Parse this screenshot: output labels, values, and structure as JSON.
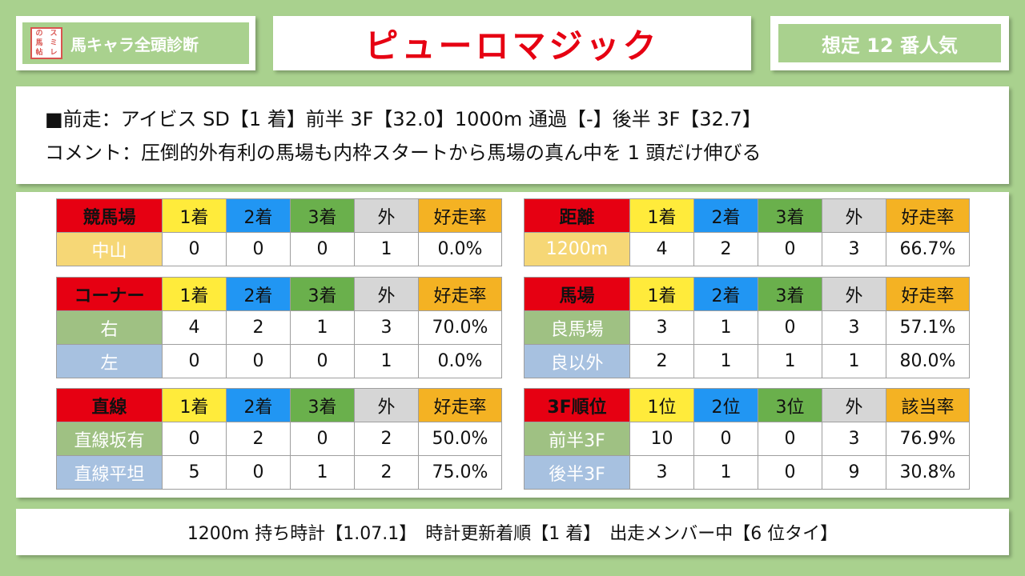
{
  "header": {
    "logo_text": [
      "の",
      "ス",
      "馬",
      "ミ",
      "帖",
      "レ"
    ],
    "series_title": "馬キャラ全頭診断",
    "horse_name": "ピューロマジック",
    "popularity": "想定 12 番人気"
  },
  "info": {
    "last_race": "■前走：アイビス SD【1 着】前半 3F【32.0】1000m 通過【-】後半 3F【32.7】",
    "comment": "コメント：圧倒的外有利の馬場も内枠スタートから馬場の真ん中を 1 頭だけ伸びる"
  },
  "colors": {
    "background": "#a9d18e",
    "category_header": "#e60012",
    "first": "#ffeb3b",
    "second": "#2196f3",
    "third": "#6ab04c",
    "other": "#d6d6d6",
    "rate": "#f4b223"
  },
  "tables": {
    "course": {
      "headers": [
        "競馬場",
        "1着",
        "2着",
        "3着",
        "外",
        "好走率"
      ],
      "rows": [
        {
          "label": "中山",
          "values": [
            "0",
            "0",
            "0",
            "1",
            "0.0%"
          ]
        }
      ]
    },
    "distance": {
      "headers": [
        "距離",
        "1着",
        "2着",
        "3着",
        "外",
        "好走率"
      ],
      "rows": [
        {
          "label": "1200m",
          "values": [
            "4",
            "2",
            "0",
            "3",
            "66.7%"
          ]
        }
      ]
    },
    "corner": {
      "headers": [
        "コーナー",
        "1着",
        "2着",
        "3着",
        "外",
        "好走率"
      ],
      "rows": [
        {
          "label": "右",
          "values": [
            "4",
            "2",
            "1",
            "3",
            "70.0%"
          ]
        },
        {
          "label": "左",
          "values": [
            "0",
            "0",
            "0",
            "1",
            "0.0%"
          ]
        }
      ]
    },
    "going": {
      "headers": [
        "馬場",
        "1着",
        "2着",
        "3着",
        "外",
        "好走率"
      ],
      "rows": [
        {
          "label": "良馬場",
          "values": [
            "3",
            "1",
            "0",
            "3",
            "57.1%"
          ]
        },
        {
          "label": "良以外",
          "values": [
            "2",
            "1",
            "1",
            "1",
            "80.0%"
          ]
        }
      ]
    },
    "straight": {
      "headers": [
        "直線",
        "1着",
        "2着",
        "3着",
        "外",
        "好走率"
      ],
      "rows": [
        {
          "label": "直線坂有",
          "values": [
            "0",
            "2",
            "0",
            "2",
            "50.0%"
          ]
        },
        {
          "label": "直線平坦",
          "values": [
            "5",
            "0",
            "1",
            "2",
            "75.0%"
          ]
        }
      ]
    },
    "rank3f": {
      "headers": [
        "3F順位",
        "1位",
        "2位",
        "3位",
        "外",
        "該当率"
      ],
      "rows": [
        {
          "label": "前半3F",
          "values": [
            "10",
            "0",
            "0",
            "3",
            "76.9%"
          ]
        },
        {
          "label": "後半3F",
          "values": [
            "3",
            "1",
            "0",
            "9",
            "30.8%"
          ]
        }
      ]
    }
  },
  "footer": {
    "text": "1200m 持ち時計【1.07.1】　時計更新着順【1 着】　出走メンバー中【6 位タイ】"
  }
}
